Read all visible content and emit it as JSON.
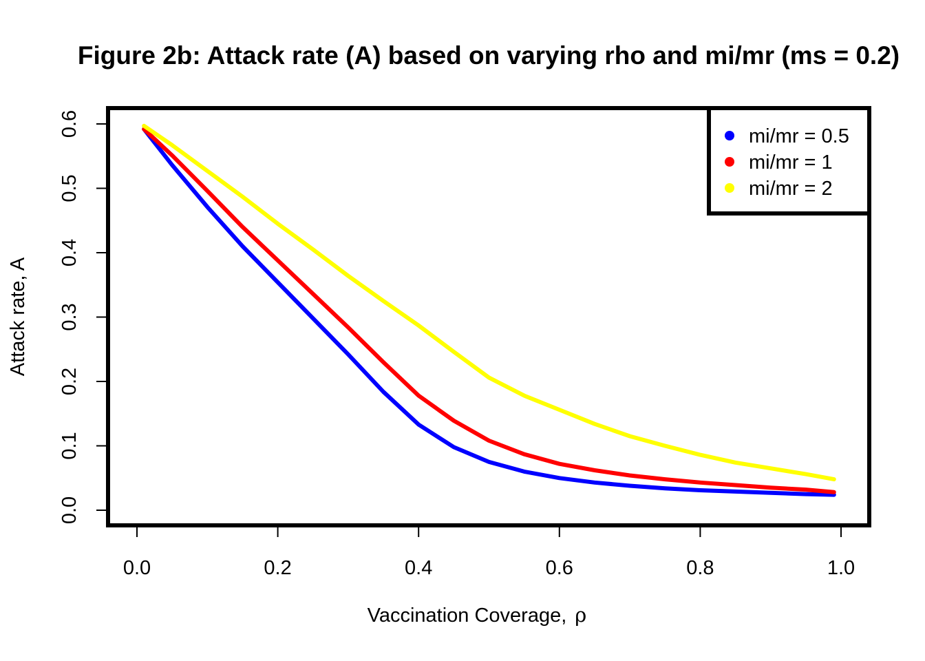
{
  "chart_data": {
    "type": "line",
    "title": "Figure 2b: Attack rate (A) based on varying rho and mi/mr (ms = 0.2)",
    "xlabel": "Vaccination Coverage,",
    "xlabel_symbol": "ρ",
    "ylabel": "Attack rate, A",
    "xlim": [
      0.0,
      1.0
    ],
    "ylim": [
      0.0,
      0.6
    ],
    "xticks": [
      "0.0",
      "0.2",
      "0.4",
      "0.6",
      "0.8",
      "1.0"
    ],
    "yticks": [
      "0.0",
      "0.1",
      "0.2",
      "0.3",
      "0.4",
      "0.5",
      "0.6"
    ],
    "grid": false,
    "legend_position": "top-right",
    "x": [
      0.01,
      0.05,
      0.1,
      0.15,
      0.2,
      0.25,
      0.3,
      0.35,
      0.4,
      0.45,
      0.5,
      0.55,
      0.6,
      0.65,
      0.7,
      0.75,
      0.8,
      0.85,
      0.9,
      0.95,
      0.99
    ],
    "series": [
      {
        "name": "mi/mr = 0.5",
        "color": "#0000ff",
        "values": [
          0.592,
          0.536,
          0.471,
          0.41,
          0.354,
          0.298,
          0.242,
          0.184,
          0.133,
          0.098,
          0.075,
          0.06,
          0.05,
          0.043,
          0.038,
          0.034,
          0.031,
          0.029,
          0.027,
          0.025,
          0.024
        ]
      },
      {
        "name": "mi/mr = 1",
        "color": "#ff0000",
        "values": [
          0.592,
          0.551,
          0.496,
          0.44,
          0.388,
          0.336,
          0.284,
          0.23,
          0.178,
          0.139,
          0.108,
          0.087,
          0.072,
          0.062,
          0.054,
          0.048,
          0.043,
          0.039,
          0.035,
          0.032,
          0.028
        ]
      },
      {
        "name": "mi/mr = 2",
        "color": "#ffff00",
        "values": [
          0.597,
          0.567,
          0.527,
          0.487,
          0.445,
          0.405,
          0.364,
          0.325,
          0.287,
          0.246,
          0.206,
          0.178,
          0.156,
          0.134,
          0.115,
          0.1,
          0.086,
          0.074,
          0.065,
          0.056,
          0.048
        ]
      }
    ]
  }
}
